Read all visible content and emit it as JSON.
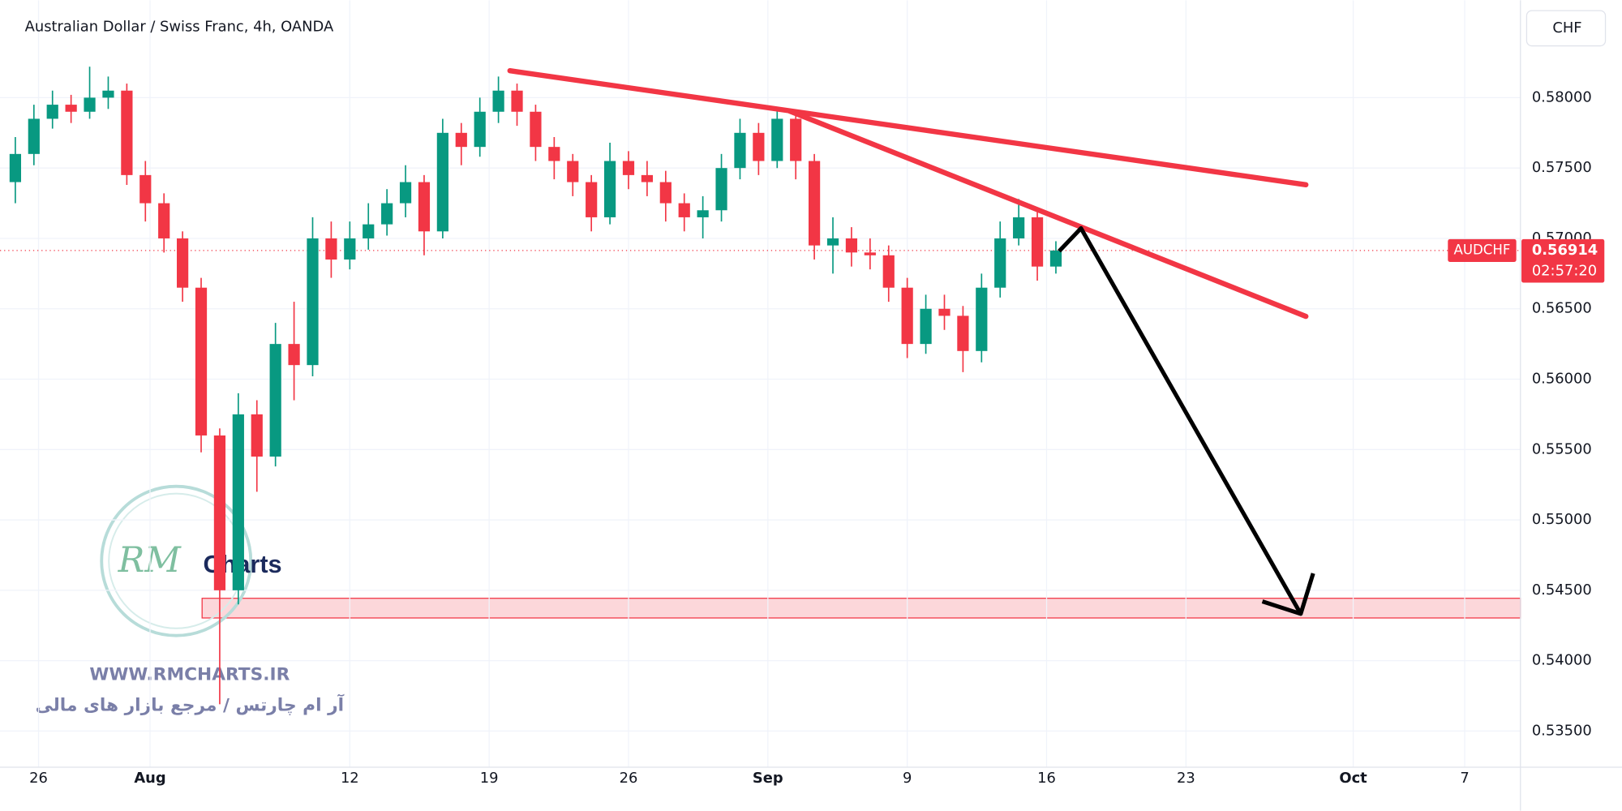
{
  "header": {
    "title": "Australian Dollar / Swiss Franc, 4h, OANDA",
    "currency_button": "CHF"
  },
  "chart_data": {
    "type": "candlestick",
    "x": [
      0,
      4,
      8,
      12,
      16,
      20,
      24,
      28,
      32,
      36,
      40,
      44,
      48,
      52,
      56,
      60,
      64,
      68,
      72,
      76,
      80,
      84,
      88,
      92,
      96,
      100,
      104,
      108,
      112,
      116,
      120,
      124,
      128,
      132,
      136,
      140,
      144,
      148,
      152,
      156,
      160,
      164,
      168,
      172,
      176,
      180,
      184,
      188,
      192,
      196,
      200,
      204,
      208,
      212,
      216,
      220,
      224
    ],
    "open": [
      0.574,
      0.576,
      0.5785,
      0.5795,
      0.579,
      0.58,
      0.5805,
      0.5745,
      0.5725,
      0.57,
      0.5665,
      0.556,
      0.545,
      0.5575,
      0.5545,
      0.5625,
      0.561,
      0.57,
      0.5685,
      0.57,
      0.571,
      0.5725,
      0.574,
      0.5705,
      0.5775,
      0.5765,
      0.579,
      0.5805,
      0.579,
      0.5765,
      0.5755,
      0.574,
      0.5715,
      0.5755,
      0.5745,
      0.574,
      0.5725,
      0.5715,
      0.572,
      0.575,
      0.5775,
      0.5755,
      0.5785,
      0.5755,
      0.5695,
      0.57,
      0.569,
      0.5688,
      0.5665,
      0.5625,
      0.565,
      0.5645,
      0.562,
      0.5665,
      0.57,
      0.5715,
      0.568
    ],
    "high": [
      0.5772,
      0.5795,
      0.5805,
      0.5802,
      0.5822,
      0.5815,
      0.581,
      0.5755,
      0.5732,
      0.5705,
      0.5672,
      0.5565,
      0.559,
      0.5585,
      0.564,
      0.5655,
      0.5715,
      0.5712,
      0.5712,
      0.5725,
      0.5735,
      0.5752,
      0.5745,
      0.5785,
      0.5782,
      0.58,
      0.5815,
      0.581,
      0.5795,
      0.5772,
      0.576,
      0.5745,
      0.5768,
      0.5762,
      0.5755,
      0.5748,
      0.5732,
      0.573,
      0.576,
      0.5785,
      0.5782,
      0.5792,
      0.579,
      0.576,
      0.5715,
      0.5708,
      0.57,
      0.5695,
      0.5672,
      0.566,
      0.566,
      0.5652,
      0.5675,
      0.5712,
      0.5728,
      0.5722,
      0.5698
    ],
    "low": [
      0.5725,
      0.5752,
      0.5778,
      0.5782,
      0.5785,
      0.5792,
      0.5738,
      0.5712,
      0.569,
      0.5655,
      0.5548,
      0.5369,
      0.544,
      0.552,
      0.5538,
      0.5585,
      0.5602,
      0.5672,
      0.5678,
      0.5692,
      0.5702,
      0.5715,
      0.5688,
      0.57,
      0.5752,
      0.5758,
      0.5782,
      0.578,
      0.5755,
      0.5742,
      0.573,
      0.5705,
      0.571,
      0.5735,
      0.573,
      0.5712,
      0.5705,
      0.57,
      0.5712,
      0.5742,
      0.5745,
      0.575,
      0.5742,
      0.5685,
      0.5675,
      0.568,
      0.5678,
      0.5655,
      0.5615,
      0.5618,
      0.5635,
      0.5605,
      0.5612,
      0.5658,
      0.5695,
      0.567,
      0.5675
    ],
    "close": [
      0.576,
      0.5785,
      0.5795,
      0.579,
      0.58,
      0.5805,
      0.5745,
      0.5725,
      0.57,
      0.5665,
      0.556,
      0.545,
      0.5575,
      0.5545,
      0.5625,
      0.561,
      0.57,
      0.5685,
      0.57,
      0.571,
      0.5725,
      0.574,
      0.5705,
      0.5775,
      0.5765,
      0.579,
      0.5805,
      0.579,
      0.5765,
      0.5755,
      0.574,
      0.5715,
      0.5755,
      0.5745,
      0.574,
      0.5725,
      0.5715,
      0.572,
      0.575,
      0.5775,
      0.5755,
      0.5785,
      0.5755,
      0.5695,
      0.57,
      0.569,
      0.5688,
      0.5665,
      0.5625,
      0.565,
      0.5645,
      0.562,
      0.5665,
      0.57,
      0.5715,
      0.568,
      0.56914
    ],
    "up_color": "#089981",
    "down_color": "#f23645",
    "xlim": [
      -3.3,
      324
    ],
    "xticks": [
      {
        "value": 5,
        "label": "26"
      },
      {
        "value": 29,
        "label": "Aug"
      },
      {
        "value": 72,
        "label": "12"
      },
      {
        "value": 102,
        "label": "19"
      },
      {
        "value": 132,
        "label": "26"
      },
      {
        "value": 162,
        "label": "Sep"
      },
      {
        "value": 192,
        "label": "9"
      },
      {
        "value": 222,
        "label": "16"
      },
      {
        "value": 252,
        "label": "23"
      },
      {
        "value": 288,
        "label": "Oct"
      },
      {
        "value": 312,
        "label": "7"
      }
    ],
    "ylim": [
      0.53243,
      0.58692
    ],
    "yticks": [
      {
        "value": 0.535,
        "label": "0.53500"
      },
      {
        "value": 0.54,
        "label": "0.54000"
      },
      {
        "value": 0.545,
        "label": "0.54500"
      },
      {
        "value": 0.55,
        "label": "0.55000"
      },
      {
        "value": 0.555,
        "label": "0.55500"
      },
      {
        "value": 0.56,
        "label": "0.56000"
      },
      {
        "value": 0.565,
        "label": "0.56500"
      },
      {
        "value": 0.57,
        "label": "0.57000"
      },
      {
        "value": 0.575,
        "label": "0.57500"
      },
      {
        "value": 0.58,
        "label": "0.58000"
      }
    ],
    "symbol": "AUDCHF",
    "last_price": 0.56914,
    "countdown": "02:57:20"
  },
  "watermark": {
    "logo": "RM",
    "brand": "Charts",
    "url": "WWW.RMCHARTS.IR",
    "tagline": "آر ام چارتس / مرجع بازار های مالی"
  }
}
